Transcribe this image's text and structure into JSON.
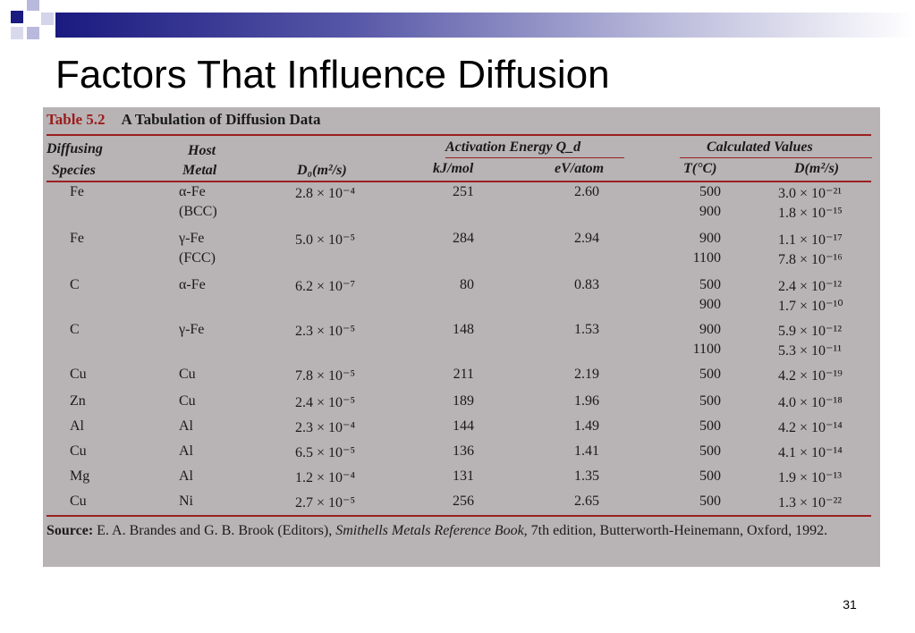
{
  "slide": {
    "title": "Factors That Influence Diffusion",
    "page_number": "31"
  },
  "table": {
    "number": "Table 5.2",
    "caption": "A Tabulation of Diffusion Data",
    "headers": {
      "species_1": "Diffusing",
      "species_2": "Species",
      "host_1": "Host",
      "host_2": "Metal",
      "d0": "D₀(m²/s)",
      "activation_group": "Activation Energy Q_d",
      "kj": "kJ/mol",
      "ev": "eV/atom",
      "calc_group": "Calculated Values",
      "t": "T(°C)",
      "d": "D(m²/s)"
    },
    "rows": [
      {
        "species": "Fe",
        "host": "α-Fe",
        "host_sub": "(BCC)",
        "d0": "2.8 × 10⁻⁴",
        "kj": "251",
        "ev": "2.60",
        "t": [
          "500",
          "900"
        ],
        "d": [
          "3.0 × 10⁻²¹",
          "1.8 × 10⁻¹⁵"
        ]
      },
      {
        "species": "Fe",
        "host": "γ-Fe",
        "host_sub": "(FCC)",
        "d0": "5.0 × 10⁻⁵",
        "kj": "284",
        "ev": "2.94",
        "t": [
          "900",
          "1100"
        ],
        "d": [
          "1.1 × 10⁻¹⁷",
          "7.8 × 10⁻¹⁶"
        ]
      },
      {
        "species": "C",
        "host": "α-Fe",
        "host_sub": "",
        "d0": "6.2 × 10⁻⁷",
        "kj": "80",
        "ev": "0.83",
        "t": [
          "500",
          "900"
        ],
        "d": [
          "2.4 × 10⁻¹²",
          "1.7 × 10⁻¹⁰"
        ]
      },
      {
        "species": "C",
        "host": "γ-Fe",
        "host_sub": "",
        "d0": "2.3 × 10⁻⁵",
        "kj": "148",
        "ev": "1.53",
        "t": [
          "900",
          "1100"
        ],
        "d": [
          "5.9 × 10⁻¹²",
          "5.3 × 10⁻¹¹"
        ]
      },
      {
        "species": "Cu",
        "host": "Cu",
        "host_sub": "",
        "d0": "7.8 × 10⁻⁵",
        "kj": "211",
        "ev": "2.19",
        "t": [
          "500"
        ],
        "d": [
          "4.2 × 10⁻¹⁹"
        ]
      },
      {
        "species": "Zn",
        "host": "Cu",
        "host_sub": "",
        "d0": "2.4 × 10⁻⁵",
        "kj": "189",
        "ev": "1.96",
        "t": [
          "500"
        ],
        "d": [
          "4.0 × 10⁻¹⁸"
        ]
      },
      {
        "species": "Al",
        "host": "Al",
        "host_sub": "",
        "d0": "2.3 × 10⁻⁴",
        "kj": "144",
        "ev": "1.49",
        "t": [
          "500"
        ],
        "d": [
          "4.2 × 10⁻¹⁴"
        ]
      },
      {
        "species": "Cu",
        "host": "Al",
        "host_sub": "",
        "d0": "6.5 × 10⁻⁵",
        "kj": "136",
        "ev": "1.41",
        "t": [
          "500"
        ],
        "d": [
          "4.1 × 10⁻¹⁴"
        ]
      },
      {
        "species": "Mg",
        "host": "Al",
        "host_sub": "",
        "d0": "1.2 × 10⁻⁴",
        "kj": "131",
        "ev": "1.35",
        "t": [
          "500"
        ],
        "d": [
          "1.9 × 10⁻¹³"
        ]
      },
      {
        "species": "Cu",
        "host": "Ni",
        "host_sub": "",
        "d0": "2.7 × 10⁻⁵",
        "kj": "256",
        "ev": "2.65",
        "t": [
          "500"
        ],
        "d": [
          "1.3 × 10⁻²²"
        ]
      }
    ],
    "source": {
      "label": "Source:",
      "authors": "E. A. Brandes and G. B. Brook (Editors),",
      "book": "Smithells Metals Reference Book,",
      "rest": "7th edition, Butterworth-Heinemann, Oxford, 1992."
    }
  },
  "colors": {
    "header_dark": "#1a1a80",
    "table_bg": "#b8b3b4",
    "rule": "#9a2020"
  }
}
